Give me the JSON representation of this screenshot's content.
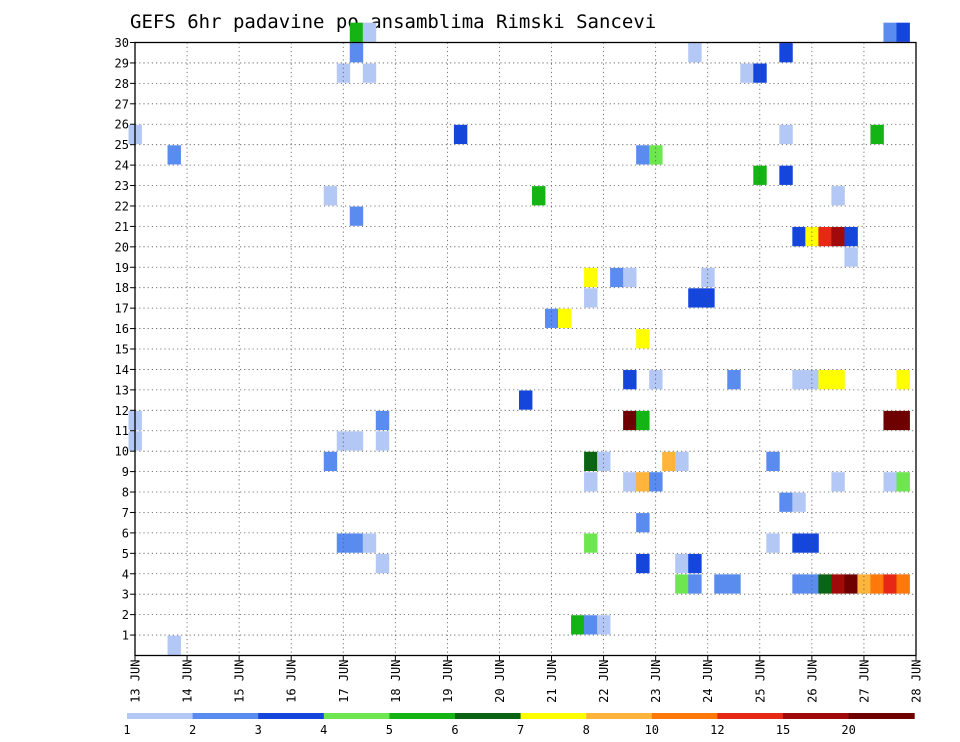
{
  "chart_data": {
    "type": "heatmap",
    "title": "GEFS 6hr padavine po ansamblima Rimski Sancevi",
    "xlabel": "",
    "ylabel": "",
    "x_axis": {
      "unit": "day",
      "range": [
        13,
        28
      ],
      "tick_labels": [
        "13 JUN",
        "14 JUN",
        "15 JUN",
        "16 JUN",
        "17 JUN",
        "18 JUN",
        "19 JUN",
        "20 JUN",
        "21 JUN",
        "22 JUN",
        "23 JUN",
        "24 JUN",
        "25 JUN",
        "26 JUN",
        "27 JUN",
        "28 JUN"
      ],
      "step_per_cell": 0.25
    },
    "y_axis": {
      "range": [
        0,
        30
      ],
      "tick_labels": [
        "1",
        "2",
        "3",
        "4",
        "5",
        "6",
        "7",
        "8",
        "9",
        "10",
        "11",
        "12",
        "13",
        "14",
        "15",
        "16",
        "17",
        "18",
        "19",
        "20",
        "21",
        "22",
        "23",
        "24",
        "25",
        "26",
        "27",
        "28",
        "29",
        "30"
      ]
    },
    "grid": true,
    "colorbar": {
      "placement": "bottom",
      "labels": [
        "1",
        "2",
        "3",
        "4",
        "5",
        "6",
        "7",
        "8",
        "10",
        "12",
        "15",
        "20"
      ],
      "colors": [
        "#b4c8f5",
        "#5a8cf0",
        "#1446dc",
        "#6ee650",
        "#14b414",
        "#0a6414",
        "#ffff00",
        "#ffb43c",
        "#ff780a",
        "#e62814",
        "#a00a0a",
        "#6e0000"
      ]
    },
    "cells": [
      {
        "member": 30,
        "day": 17.25,
        "bin": 4
      },
      {
        "member": 30,
        "day": 17.5,
        "bin": 0
      },
      {
        "member": 30,
        "day": 27.5,
        "bin": 1
      },
      {
        "member": 30,
        "day": 27.75,
        "bin": 2
      },
      {
        "member": 29,
        "day": 17.25,
        "bin": 1
      },
      {
        "member": 29,
        "day": 23.75,
        "bin": 0
      },
      {
        "member": 29,
        "day": 25.5,
        "bin": 2
      },
      {
        "member": 28,
        "day": 17,
        "bin": 0
      },
      {
        "member": 28,
        "day": 17.5,
        "bin": 0
      },
      {
        "member": 28,
        "day": 24.75,
        "bin": 0
      },
      {
        "member": 28,
        "day": 25,
        "bin": 2
      },
      {
        "member": 25,
        "day": 13,
        "bin": 0
      },
      {
        "member": 25,
        "day": 19.25,
        "bin": 2
      },
      {
        "member": 25,
        "day": 25.5,
        "bin": 0
      },
      {
        "member": 25,
        "day": 27.25,
        "bin": 4
      },
      {
        "member": 24,
        "day": 13.75,
        "bin": 1
      },
      {
        "member": 24,
        "day": 22.75,
        "bin": 1
      },
      {
        "member": 24,
        "day": 23,
        "bin": 3
      },
      {
        "member": 23,
        "day": 25,
        "bin": 4
      },
      {
        "member": 23,
        "day": 25.5,
        "bin": 2
      },
      {
        "member": 22,
        "day": 16.75,
        "bin": 0
      },
      {
        "member": 22,
        "day": 20.75,
        "bin": 4
      },
      {
        "member": 22,
        "day": 26.5,
        "bin": 0
      },
      {
        "member": 21,
        "day": 17.25,
        "bin": 1
      },
      {
        "member": 20,
        "day": 25.75,
        "bin": 2
      },
      {
        "member": 20,
        "day": 26,
        "bin": 6
      },
      {
        "member": 20,
        "day": 26.25,
        "bin": 9
      },
      {
        "member": 20,
        "day": 26.5,
        "bin": 10
      },
      {
        "member": 20,
        "day": 26.75,
        "bin": 2
      },
      {
        "member": 19,
        "day": 26.75,
        "bin": 0
      },
      {
        "member": 18,
        "day": 21.75,
        "bin": 6
      },
      {
        "member": 18,
        "day": 22.25,
        "bin": 1
      },
      {
        "member": 18,
        "day": 22.5,
        "bin": 0
      },
      {
        "member": 18,
        "day": 24,
        "bin": 0
      },
      {
        "member": 17,
        "day": 21.75,
        "bin": 0
      },
      {
        "member": 17,
        "day": 23.75,
        "bin": 2
      },
      {
        "member": 17,
        "day": 24,
        "bin": 2
      },
      {
        "member": 16,
        "day": 21,
        "bin": 1
      },
      {
        "member": 16,
        "day": 21.25,
        "bin": 6
      },
      {
        "member": 15,
        "day": 22.75,
        "bin": 6
      },
      {
        "member": 13,
        "day": 22.5,
        "bin": 2
      },
      {
        "member": 13,
        "day": 23,
        "bin": 0
      },
      {
        "member": 13,
        "day": 24.5,
        "bin": 1
      },
      {
        "member": 13,
        "day": 25.75,
        "bin": 0
      },
      {
        "member": 13,
        "day": 26,
        "bin": 0
      },
      {
        "member": 13,
        "day": 26.25,
        "bin": 6
      },
      {
        "member": 13,
        "day": 26.5,
        "bin": 6
      },
      {
        "member": 13,
        "day": 27.75,
        "bin": 6
      },
      {
        "member": 12,
        "day": 20.5,
        "bin": 2
      },
      {
        "member": 11,
        "day": 13,
        "bin": 0
      },
      {
        "member": 11,
        "day": 17.75,
        "bin": 1
      },
      {
        "member": 11,
        "day": 22.5,
        "bin": 11
      },
      {
        "member": 11,
        "day": 22.75,
        "bin": 4
      },
      {
        "member": 11,
        "day": 27.5,
        "bin": 11
      },
      {
        "member": 11,
        "day": 27.75,
        "bin": 11
      },
      {
        "member": 10,
        "day": 13,
        "bin": 0
      },
      {
        "member": 10,
        "day": 17,
        "bin": 0
      },
      {
        "member": 10,
        "day": 17.25,
        "bin": 0
      },
      {
        "member": 10,
        "day": 17.75,
        "bin": 0
      },
      {
        "member": 9,
        "day": 16.75,
        "bin": 1
      },
      {
        "member": 9,
        "day": 21.75,
        "bin": 5
      },
      {
        "member": 9,
        "day": 22,
        "bin": 0
      },
      {
        "member": 9,
        "day": 23.25,
        "bin": 7
      },
      {
        "member": 9,
        "day": 23.5,
        "bin": 0
      },
      {
        "member": 9,
        "day": 25.25,
        "bin": 1
      },
      {
        "member": 8,
        "day": 21.75,
        "bin": 0
      },
      {
        "member": 8,
        "day": 22.5,
        "bin": 0
      },
      {
        "member": 8,
        "day": 22.75,
        "bin": 7
      },
      {
        "member": 8,
        "day": 23,
        "bin": 1
      },
      {
        "member": 8,
        "day": 26.5,
        "bin": 0
      },
      {
        "member": 8,
        "day": 27.5,
        "bin": 0
      },
      {
        "member": 8,
        "day": 27.75,
        "bin": 3
      },
      {
        "member": 7,
        "day": 25.5,
        "bin": 1
      },
      {
        "member": 7,
        "day": 25.75,
        "bin": 0
      },
      {
        "member": 6,
        "day": 22.75,
        "bin": 1
      },
      {
        "member": 5,
        "day": 17,
        "bin": 1
      },
      {
        "member": 5,
        "day": 17.25,
        "bin": 1
      },
      {
        "member": 5,
        "day": 17.5,
        "bin": 0
      },
      {
        "member": 5,
        "day": 21.75,
        "bin": 3
      },
      {
        "member": 5,
        "day": 25.25,
        "bin": 0
      },
      {
        "member": 5,
        "day": 25.75,
        "bin": 2
      },
      {
        "member": 5,
        "day": 26,
        "bin": 2
      },
      {
        "member": 4,
        "day": 17.75,
        "bin": 0
      },
      {
        "member": 4,
        "day": 22.75,
        "bin": 2
      },
      {
        "member": 4,
        "day": 23.5,
        "bin": 0
      },
      {
        "member": 4,
        "day": 23.75,
        "bin": 2
      },
      {
        "member": 3,
        "day": 23.5,
        "bin": 3
      },
      {
        "member": 3,
        "day": 23.75,
        "bin": 1
      },
      {
        "member": 3,
        "day": 24.25,
        "bin": 1
      },
      {
        "member": 3,
        "day": 24.5,
        "bin": 1
      },
      {
        "member": 3,
        "day": 25.75,
        "bin": 1
      },
      {
        "member": 3,
        "day": 26,
        "bin": 1
      },
      {
        "member": 3,
        "day": 26.25,
        "bin": 5
      },
      {
        "member": 3,
        "day": 26.5,
        "bin": 10
      },
      {
        "member": 3,
        "day": 26.75,
        "bin": 11
      },
      {
        "member": 3,
        "day": 27,
        "bin": 7
      },
      {
        "member": 3,
        "day": 27.25,
        "bin": 8
      },
      {
        "member": 3,
        "day": 27.5,
        "bin": 9
      },
      {
        "member": 3,
        "day": 27.75,
        "bin": 8
      },
      {
        "member": 1,
        "day": 21.5,
        "bin": 4
      },
      {
        "member": 1,
        "day": 21.75,
        "bin": 1
      },
      {
        "member": 1,
        "day": 22,
        "bin": 0
      },
      {
        "member": 0,
        "day": 13.75,
        "bin": 0
      }
    ]
  }
}
